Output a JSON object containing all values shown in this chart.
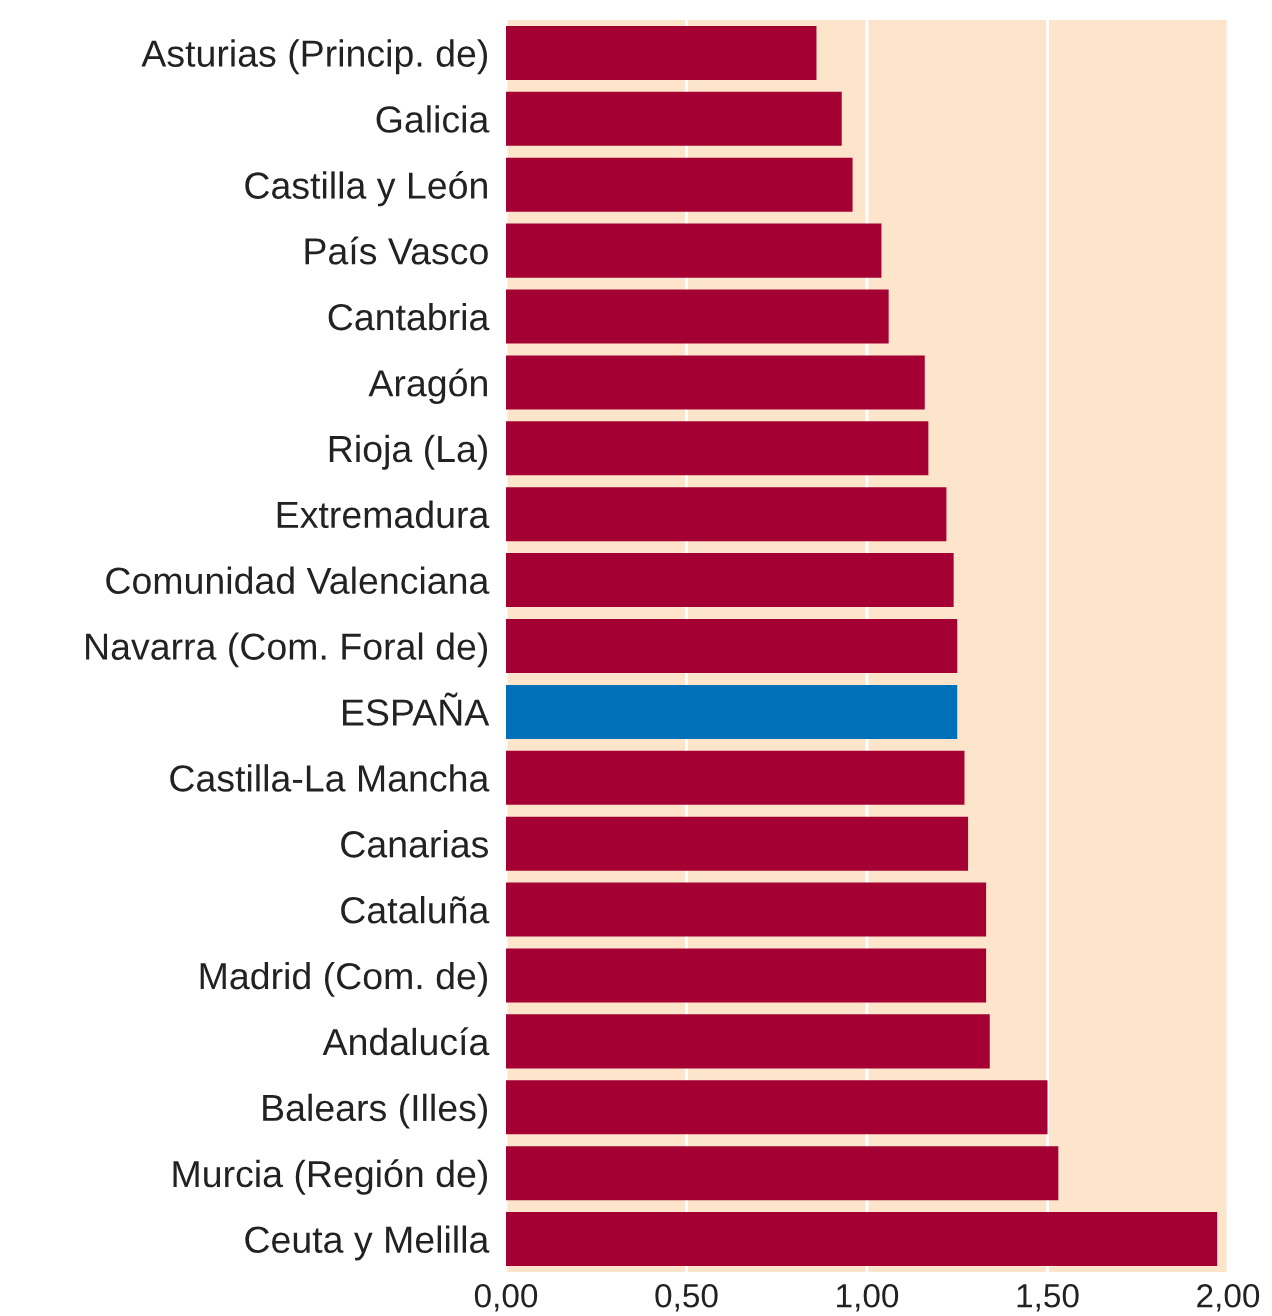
{
  "chart_data": {
    "type": "bar",
    "orientation": "horizontal",
    "categories": [
      "Asturias (Princip. de)",
      "Galicia",
      "Castilla y León",
      "País Vasco",
      "Cantabria",
      "Aragón",
      "Rioja (La)",
      "Extremadura",
      "Comunidad Valenciana",
      "Navarra (Com. Foral de)",
      "ESPAÑA",
      "Castilla-La Mancha",
      "Canarias",
      "Cataluña",
      "Madrid (Com. de)",
      "Andalucía",
      "Balears (Illes)",
      "Murcia (Región de)",
      "Ceuta y Melilla"
    ],
    "values": [
      0.86,
      0.93,
      0.96,
      1.04,
      1.06,
      1.16,
      1.17,
      1.22,
      1.24,
      1.25,
      1.25,
      1.27,
      1.28,
      1.33,
      1.33,
      1.34,
      1.5,
      1.53,
      1.97
    ],
    "colors": [
      "#a50034",
      "#a50034",
      "#a50034",
      "#a50034",
      "#a50034",
      "#a50034",
      "#a50034",
      "#a50034",
      "#a50034",
      "#a50034",
      "#0070b8",
      "#a50034",
      "#a50034",
      "#a50034",
      "#a50034",
      "#a50034",
      "#a50034",
      "#a50034",
      "#a50034"
    ],
    "xlim": [
      0,
      2
    ],
    "xticks": [
      {
        "value": 0,
        "label": "0,00"
      },
      {
        "value": 0.5,
        "label": "0,50"
      },
      {
        "value": 1,
        "label": "1,00"
      },
      {
        "value": 1.5,
        "label": "1,50"
      },
      {
        "value": 2,
        "label": "2,00"
      }
    ],
    "bands": [
      {
        "axis": "x",
        "from": 0,
        "to": 2,
        "color": "#fde5cc"
      }
    ],
    "grid": "x"
  }
}
